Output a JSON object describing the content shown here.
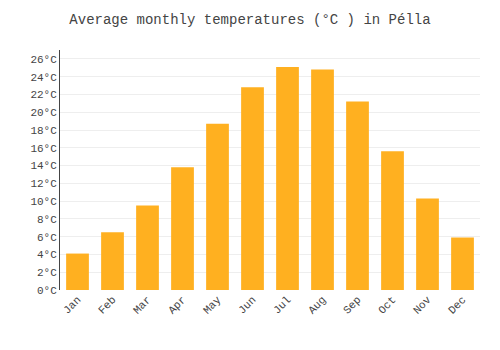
{
  "chart_data": {
    "type": "bar",
    "title": "Average monthly temperatures (°C ) in Pélla",
    "categories": [
      "Jan",
      "Feb",
      "Mar",
      "Apr",
      "May",
      "Jun",
      "Jul",
      "Aug",
      "Sep",
      "Oct",
      "Nov",
      "Dec"
    ],
    "values": [
      4.1,
      6.5,
      9.5,
      13.8,
      18.7,
      22.8,
      25.1,
      24.8,
      21.2,
      15.6,
      10.3,
      5.9
    ],
    "color": "#FFB020",
    "ylim": [
      0,
      27
    ],
    "yticks": [
      {
        "value": 0,
        "label": "0°C"
      },
      {
        "value": 2,
        "label": "2°C"
      },
      {
        "value": 4,
        "label": "4°C"
      },
      {
        "value": 6,
        "label": "6°C"
      },
      {
        "value": 8,
        "label": "8°C"
      },
      {
        "value": 10,
        "label": "10°C"
      },
      {
        "value": 12,
        "label": "12°C"
      },
      {
        "value": 14,
        "label": "14°C"
      },
      {
        "value": 16,
        "label": "16°C"
      },
      {
        "value": 18,
        "label": "18°C"
      },
      {
        "value": 20,
        "label": "20°C"
      },
      {
        "value": 22,
        "label": "22°C"
      },
      {
        "value": 24,
        "label": "24°C"
      },
      {
        "value": 26,
        "label": "26°C"
      }
    ],
    "grid": true
  }
}
